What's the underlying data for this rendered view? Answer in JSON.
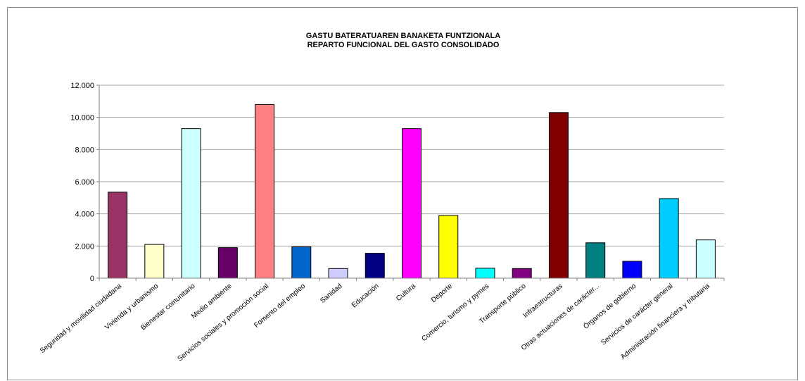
{
  "chart_data": {
    "type": "bar",
    "title_lines": [
      "GASTU BATERATUAREN BANAKETA FUNTZIONALA",
      "REPARTO FUNCIONAL DEL GASTO CONSOLIDADO"
    ],
    "xlabel": "",
    "ylabel": "",
    "ylim": [
      0,
      12000
    ],
    "yticks": [
      0,
      2000,
      4000,
      6000,
      8000,
      10000,
      12000
    ],
    "ytick_labels": [
      "0",
      "2.000",
      "4.000",
      "6.000",
      "8.000",
      "10.000",
      "12.000"
    ],
    "grid": true,
    "legend": "none",
    "categories": [
      "Seguridad y movilidad ciudadana",
      "Vivienda y urbanismo",
      "Bienestar comunitario",
      "Medio ambiente",
      "Servicios sociales y promoción social",
      "Fomento del empleo",
      "Sanidad",
      "Educación",
      "Cultura",
      "Deporte",
      "Comercio, turismo y pymes",
      "Transporte público",
      "Infraestructuras",
      "Otras actuaciones de carácter...",
      "Órganos de gobierno",
      "Servicios de carácter general",
      "Administración financiera y tributaria"
    ],
    "values": [
      5350,
      2100,
      9300,
      1900,
      10800,
      1950,
      600,
      1550,
      9300,
      3900,
      620,
      600,
      10300,
      2200,
      1050,
      4950,
      2380
    ],
    "colors": [
      "#993366",
      "#ffffcc",
      "#ccffff",
      "#660066",
      "#ff8080",
      "#0066cc",
      "#ccccff",
      "#000080",
      "#ff00ff",
      "#ffff00",
      "#00ffff",
      "#800080",
      "#800000",
      "#008080",
      "#0000ff",
      "#00ccff",
      "#ccffff"
    ]
  }
}
